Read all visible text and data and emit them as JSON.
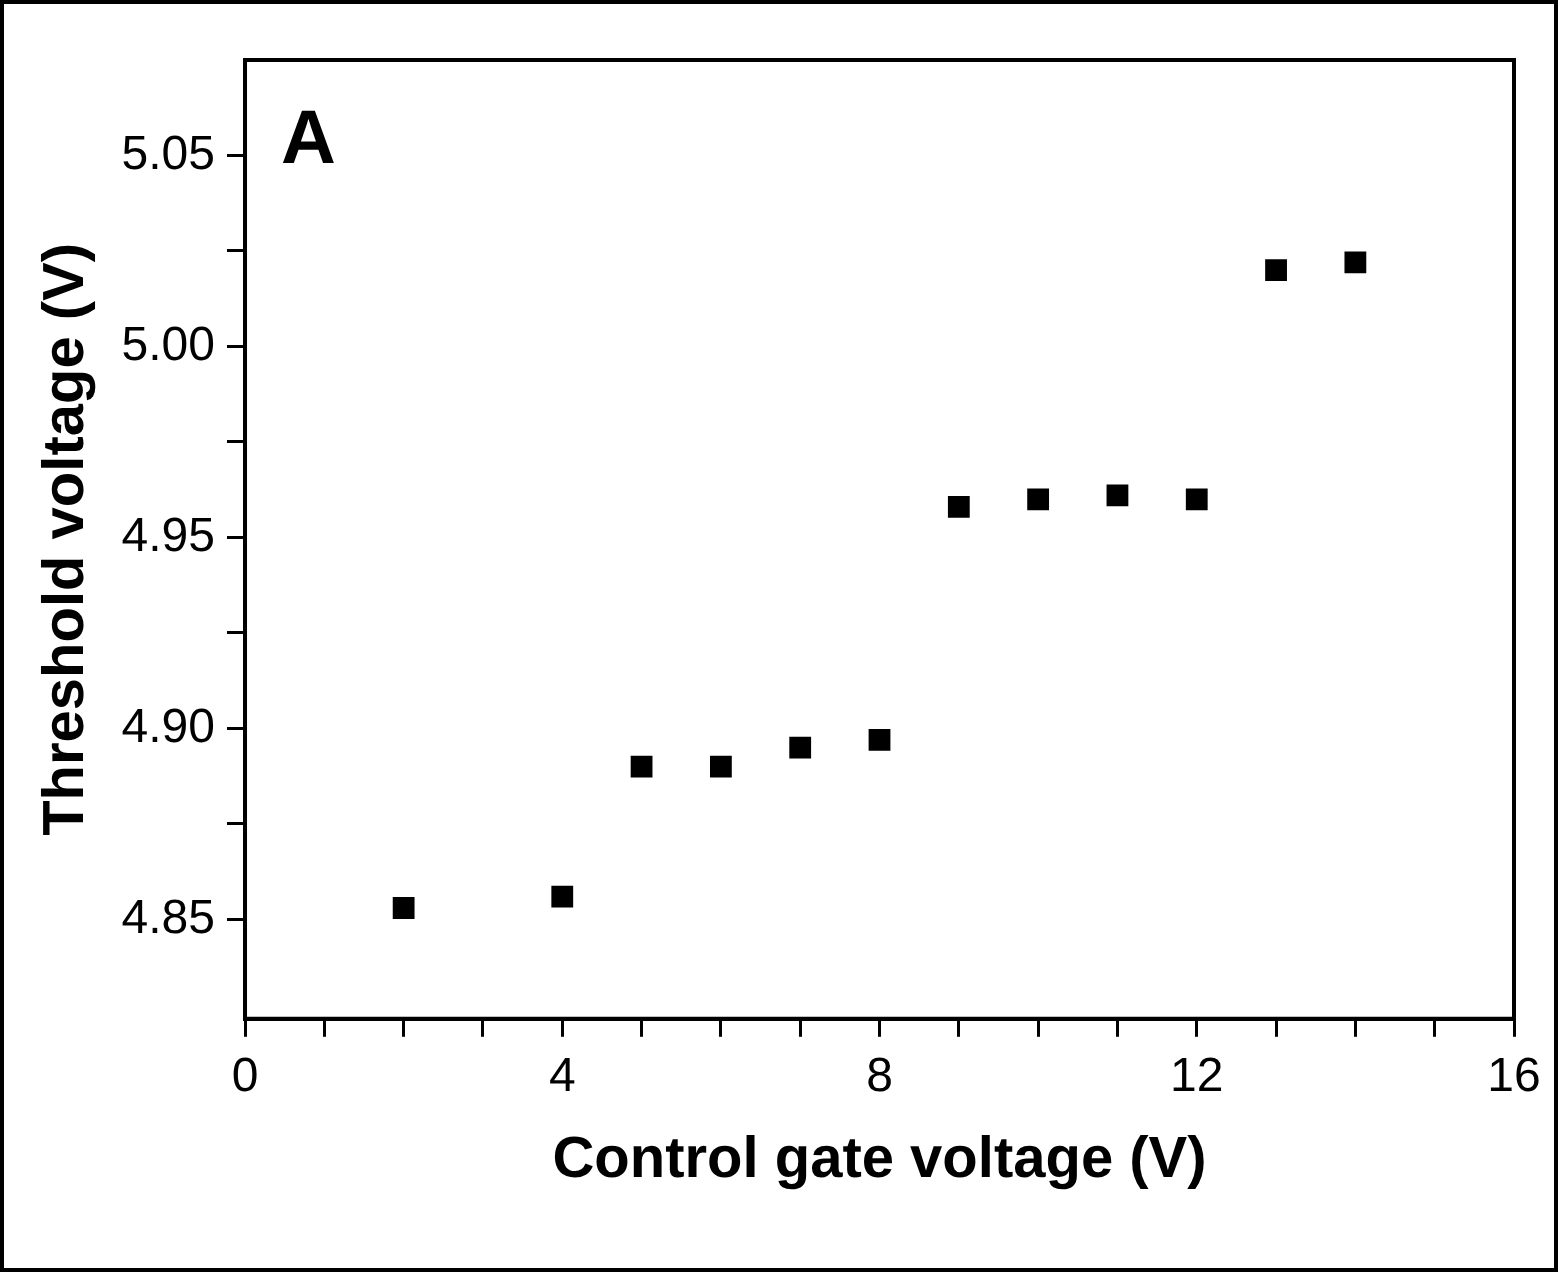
{
  "chart_data": {
    "type": "scatter",
    "xlabel": "Control gate voltage (V)",
    "ylabel": "Threshold voltage (V)",
    "annotations": [
      "A"
    ],
    "x": [
      2,
      4,
      5,
      6,
      7,
      8,
      9,
      10,
      11,
      12,
      13,
      14
    ],
    "series": [
      {
        "color": "#000000",
        "values": [
          4.853,
          4.856,
          4.89,
          4.89,
          4.895,
          4.897,
          4.958,
          4.96,
          4.961,
          4.96,
          5.02,
          5.022
        ]
      }
    ],
    "xlim": [
      0,
      16
    ],
    "ylim": [
      4.824,
      5.075
    ],
    "xticks": [
      0,
      {
        "value": 1,
        "label": null
      },
      {
        "value": 2,
        "label": null
      },
      {
        "value": 3,
        "label": null
      },
      4,
      {
        "value": 5,
        "label": null
      },
      {
        "value": 6,
        "label": null
      },
      {
        "value": 7,
        "label": null
      },
      8,
      {
        "value": 9,
        "label": null
      },
      {
        "value": 10,
        "label": null
      },
      {
        "value": 11,
        "label": null
      },
      12,
      {
        "value": 13,
        "label": null
      },
      {
        "value": 14,
        "label": null
      },
      {
        "value": 15,
        "label": null
      },
      16
    ],
    "yticks": [
      {
        "value": 4.85,
        "label": "4.85"
      },
      {
        "value": 4.875,
        "label": null
      },
      {
        "value": 4.9,
        "label": "4.90"
      },
      {
        "value": 4.925,
        "label": null
      },
      {
        "value": 4.95,
        "label": "4.95"
      },
      {
        "value": 4.975,
        "label": null
      },
      {
        "value": 5.0,
        "label": "5.00"
      },
      {
        "value": 5.025,
        "label": null
      },
      {
        "value": 5.05,
        "label": "5.05"
      }
    ],
    "marker": "square",
    "grid": false,
    "legend": false
  }
}
